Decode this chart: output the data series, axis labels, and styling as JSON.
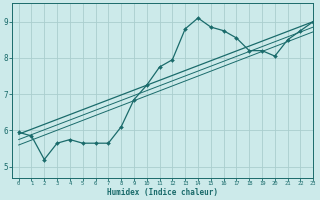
{
  "title": "",
  "xlabel": "Humidex (Indice chaleur)",
  "ylabel": "",
  "xlim": [
    -0.5,
    23
  ],
  "ylim": [
    4.7,
    9.5
  ],
  "xticks": [
    0,
    1,
    2,
    3,
    4,
    5,
    6,
    7,
    8,
    9,
    10,
    11,
    12,
    13,
    14,
    15,
    16,
    17,
    18,
    19,
    20,
    21,
    22,
    23
  ],
  "yticks": [
    5,
    6,
    7,
    8,
    9
  ],
  "bg_color": "#cceaea",
  "line_color": "#1a6b6b",
  "grid_color": "#aacece",
  "curve_x": [
    0,
    1,
    2,
    3,
    4,
    5,
    6,
    7,
    8,
    9,
    10,
    11,
    12,
    13,
    14,
    15,
    16,
    17,
    18,
    19,
    20,
    21,
    22,
    23
  ],
  "curve_y": [
    5.95,
    5.85,
    5.2,
    5.65,
    5.75,
    5.65,
    5.65,
    5.65,
    6.1,
    6.85,
    7.25,
    7.75,
    7.95,
    8.8,
    9.1,
    8.85,
    8.75,
    8.55,
    8.2,
    8.2,
    8.05,
    8.5,
    8.75,
    9.0
  ],
  "line1_x": [
    0,
    23
  ],
  "line1_y": [
    5.9,
    9.0
  ],
  "line2_x": [
    0,
    23
  ],
  "line2_y": [
    5.75,
    8.85
  ],
  "line3_x": [
    0,
    23
  ],
  "line3_y": [
    5.6,
    8.72
  ]
}
